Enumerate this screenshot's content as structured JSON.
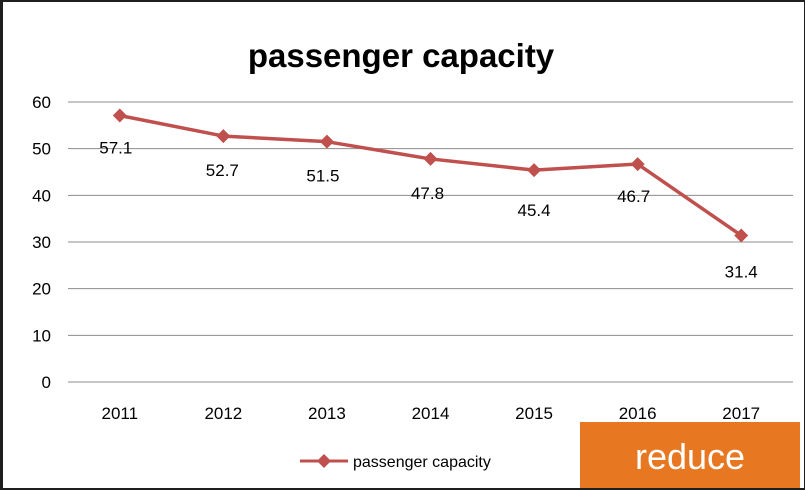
{
  "chart_data": {
    "type": "line",
    "title": "passenger capacity",
    "categories": [
      "2011",
      "2012",
      "2013",
      "2014",
      "2015",
      "2016",
      "2017"
    ],
    "series": [
      {
        "name": "passenger capacity",
        "values": [
          57.1,
          52.7,
          51.5,
          47.8,
          45.4,
          46.7,
          31.4
        ],
        "labels": [
          "57.1",
          "52.7",
          "51.5",
          "47.8",
          "45.4",
          "46.7",
          "31.4"
        ],
        "color": "#C0504D",
        "marker": "diamond"
      }
    ],
    "y_ticks": [
      "0",
      "10",
      "20",
      "30",
      "40",
      "50",
      "60"
    ],
    "ylim": [
      0,
      60
    ],
    "grid": true,
    "legend": "bottom"
  },
  "badge": {
    "text": "reduce",
    "color": "#E87722"
  }
}
